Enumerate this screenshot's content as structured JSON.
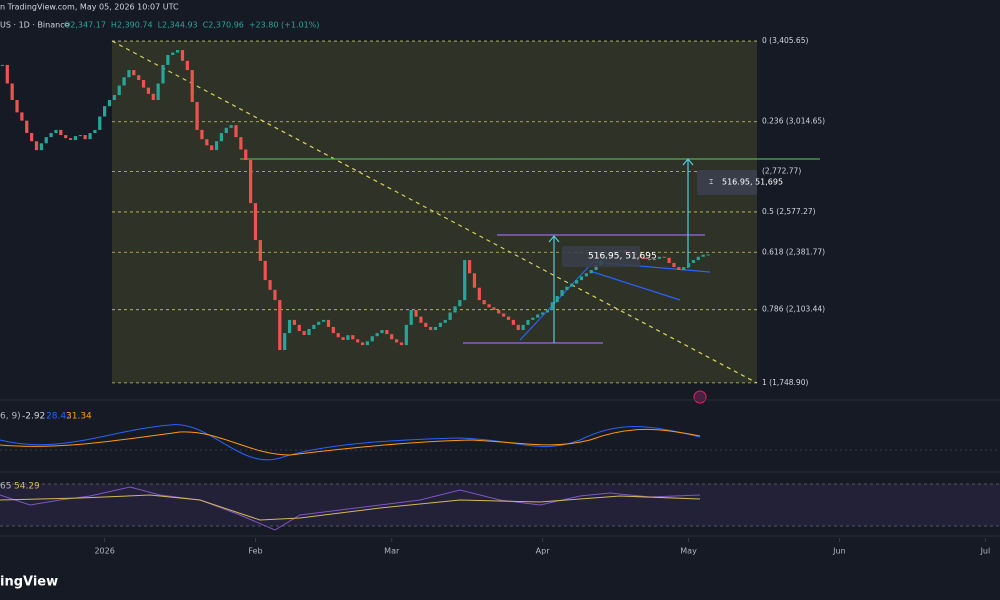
{
  "header": {
    "source": "n TradingView.com, May 05, 2026 10:07 UTC",
    "symbol": "US · 1D · Binance",
    "ohlc": [
      "O2,347.17",
      "H2,390.74",
      "L2,344.93",
      "C2,370.96",
      "+23.80 (+1.01%)"
    ]
  },
  "chart_data": {
    "type": "candlestick",
    "x": [
      -21,
      -20,
      -19,
      -18,
      -17,
      -16,
      -15,
      -14,
      -13,
      -12,
      -11,
      -10,
      -9,
      -8,
      -7,
      -6,
      -5,
      -4,
      -3,
      -2,
      -1,
      0,
      1,
      2,
      3,
      4,
      5,
      6,
      7,
      8,
      9,
      10,
      11,
      12,
      13,
      14,
      15,
      16,
      17,
      18,
      19,
      20,
      21,
      22,
      23,
      24,
      25,
      26,
      27,
      28,
      29,
      30,
      31,
      32,
      33,
      34,
      35,
      36,
      37,
      38,
      39,
      40,
      41,
      42,
      43,
      44,
      45,
      46,
      47,
      48,
      49,
      50,
      51,
      52,
      53,
      54,
      55,
      56,
      57,
      58,
      59,
      60,
      61,
      62,
      63,
      64,
      65,
      66,
      67,
      68,
      69,
      70,
      71,
      72,
      73,
      74,
      75,
      76,
      77,
      78,
      79,
      80,
      81,
      82,
      83,
      84,
      85,
      86,
      87,
      88,
      89,
      90,
      91,
      92,
      93,
      94,
      95,
      96,
      97,
      98,
      99,
      100,
      101,
      102,
      103,
      104,
      105,
      106,
      107,
      108,
      109,
      110,
      111,
      112,
      113,
      114,
      115,
      116,
      117,
      118,
      119,
      120,
      121,
      122,
      123,
      124
    ],
    "values": [
      3290,
      3200,
      3120,
      3060,
      3020,
      2960,
      2920,
      2877,
      2910,
      2940,
      2960,
      2975,
      2950,
      2935,
      2926,
      2945,
      2950,
      2930,
      2960,
      2975,
      3040,
      3090,
      3120,
      3144,
      3190,
      3230,
      3265,
      3240,
      3217,
      3180,
      3150,
      3120,
      3200,
      3290,
      3338,
      3350,
      3362,
      3310,
      3265,
      3110,
      2975,
      2930,
      2900,
      2877,
      2920,
      2960,
      2985,
      2998,
      2940,
      2880,
      2829,
      2620,
      2441,
      2340,
      2247,
      2200,
      2150,
      1908,
      1990,
      2054,
      2030,
      2000,
      1981,
      2010,
      2030,
      2045,
      2054,
      2020,
      1990,
      1970,
      1957,
      1980,
      1960,
      1945,
      1932,
      1950,
      1975,
      1990,
      2005,
      1985,
      1960,
      1945,
      1932,
      2030,
      2102,
      2070,
      2040,
      2020,
      2005,
      2020,
      2040,
      2054,
      2090,
      2120,
      2150,
      2344,
      2280,
      2210,
      2150,
      2130,
      2115,
      2102,
      2085,
      2070,
      2054,
      2030,
      2005,
      2030,
      2054,
      2065,
      2080,
      2090,
      2102,
      2140,
      2170,
      2199,
      2215,
      2230,
      2247,
      2265,
      2280,
      2296,
      2320,
      2344,
      2360,
      2375,
      2385,
      2392,
      2380,
      2372,
      2368,
      2355,
      2350,
      2344,
      2350,
      2360,
      2355,
      2330,
      2310,
      2296,
      2310,
      2330,
      2344,
      2360,
      2370,
      2371
    ],
    "up_color": "#26a69a",
    "down_color": "#ef5350",
    "xlim": [
      -21.5,
      184
    ],
    "ylim": [
      1690,
      3435
    ],
    "xticks": [
      {
        "value": 0,
        "label": "2026"
      },
      {
        "value": 31,
        "label": "Feb"
      },
      {
        "value": 59,
        "label": "Mar"
      },
      {
        "value": 90,
        "label": "Apr"
      },
      {
        "value": 120,
        "label": "May"
      },
      {
        "value": 151,
        "label": "Jun"
      },
      {
        "value": 181,
        "label": "Jul"
      }
    ]
  },
  "fib_levels": [
    {
      "value": 3405.65,
      "label": "0 (3,405.65)"
    },
    {
      "value": 3014.65,
      "label": "0.236 (3,014.65)"
    },
    {
      "value": 2772.77,
      "label": "(2,772.77)"
    },
    {
      "value": 2577.27,
      "label": "0.5 (2,577.27)"
    },
    {
      "value": 2381.77,
      "label": "0.618 (2,381.77)"
    },
    {
      "value": 2103.44,
      "label": "0.786 (2,103.44)"
    },
    {
      "value": 1748.9,
      "label": "1 (1,748.90)"
    }
  ],
  "measure_labels": [
    "516.95, 51,695",
    "516.95, 51,695"
  ],
  "macd_legend": [
    "6, 9)",
    "-2.92",
    "28.42",
    "31.34"
  ],
  "rsi_legend": [
    "65",
    "54.29"
  ],
  "footer": {
    "brand": "ingView"
  }
}
